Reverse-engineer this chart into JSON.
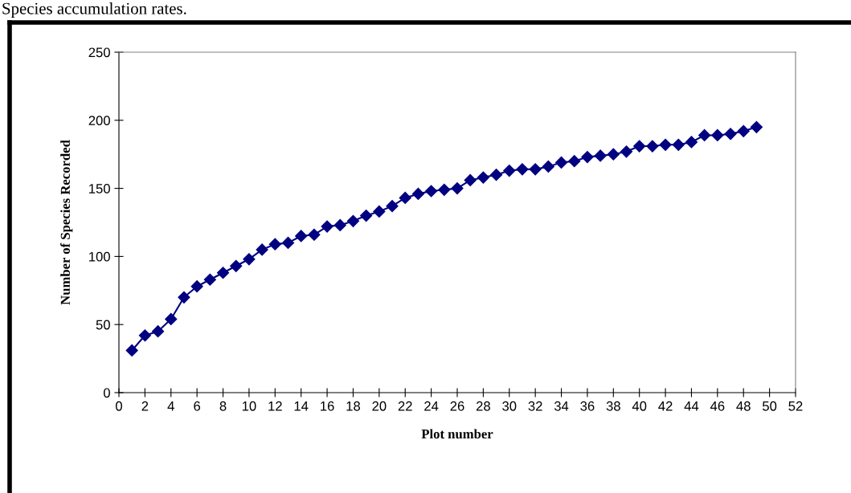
{
  "chart_data": {
    "type": "line",
    "title": "Species accumulation rates.",
    "xlabel": "Plot number",
    "ylabel": "Number of Species Recorded",
    "x": [
      1,
      2,
      3,
      4,
      5,
      6,
      7,
      8,
      9,
      10,
      11,
      12,
      13,
      14,
      15,
      16,
      17,
      18,
      19,
      20,
      21,
      22,
      23,
      24,
      25,
      26,
      27,
      28,
      29,
      30,
      31,
      32,
      33,
      34,
      35,
      36,
      37,
      38,
      39,
      40,
      41,
      42,
      43,
      44,
      45,
      46,
      47,
      48,
      49
    ],
    "series": [
      {
        "color": "#000080",
        "values": [
          31,
          42,
          45,
          54,
          70,
          78,
          83,
          88,
          93,
          98,
          105,
          109,
          110,
          115,
          116,
          122,
          123,
          126,
          130,
          133,
          137,
          143,
          146,
          148,
          149,
          150,
          156,
          158,
          160,
          163,
          164,
          164,
          166,
          169,
          170,
          173,
          174,
          175,
          177,
          181,
          181,
          182,
          182,
          184,
          189,
          189,
          190,
          192,
          195
        ]
      }
    ],
    "xlim": [
      0,
      52
    ],
    "xticks": [
      0,
      2,
      4,
      6,
      8,
      10,
      12,
      14,
      16,
      18,
      20,
      22,
      24,
      26,
      28,
      30,
      32,
      34,
      36,
      38,
      40,
      42,
      44,
      46,
      48,
      50,
      52
    ],
    "ylim": [
      0,
      250
    ],
    "yticks": [
      0,
      50,
      100,
      150,
      200,
      250
    ],
    "marker": "diamond",
    "line_style": "solid",
    "grid": false,
    "legend": false
  }
}
